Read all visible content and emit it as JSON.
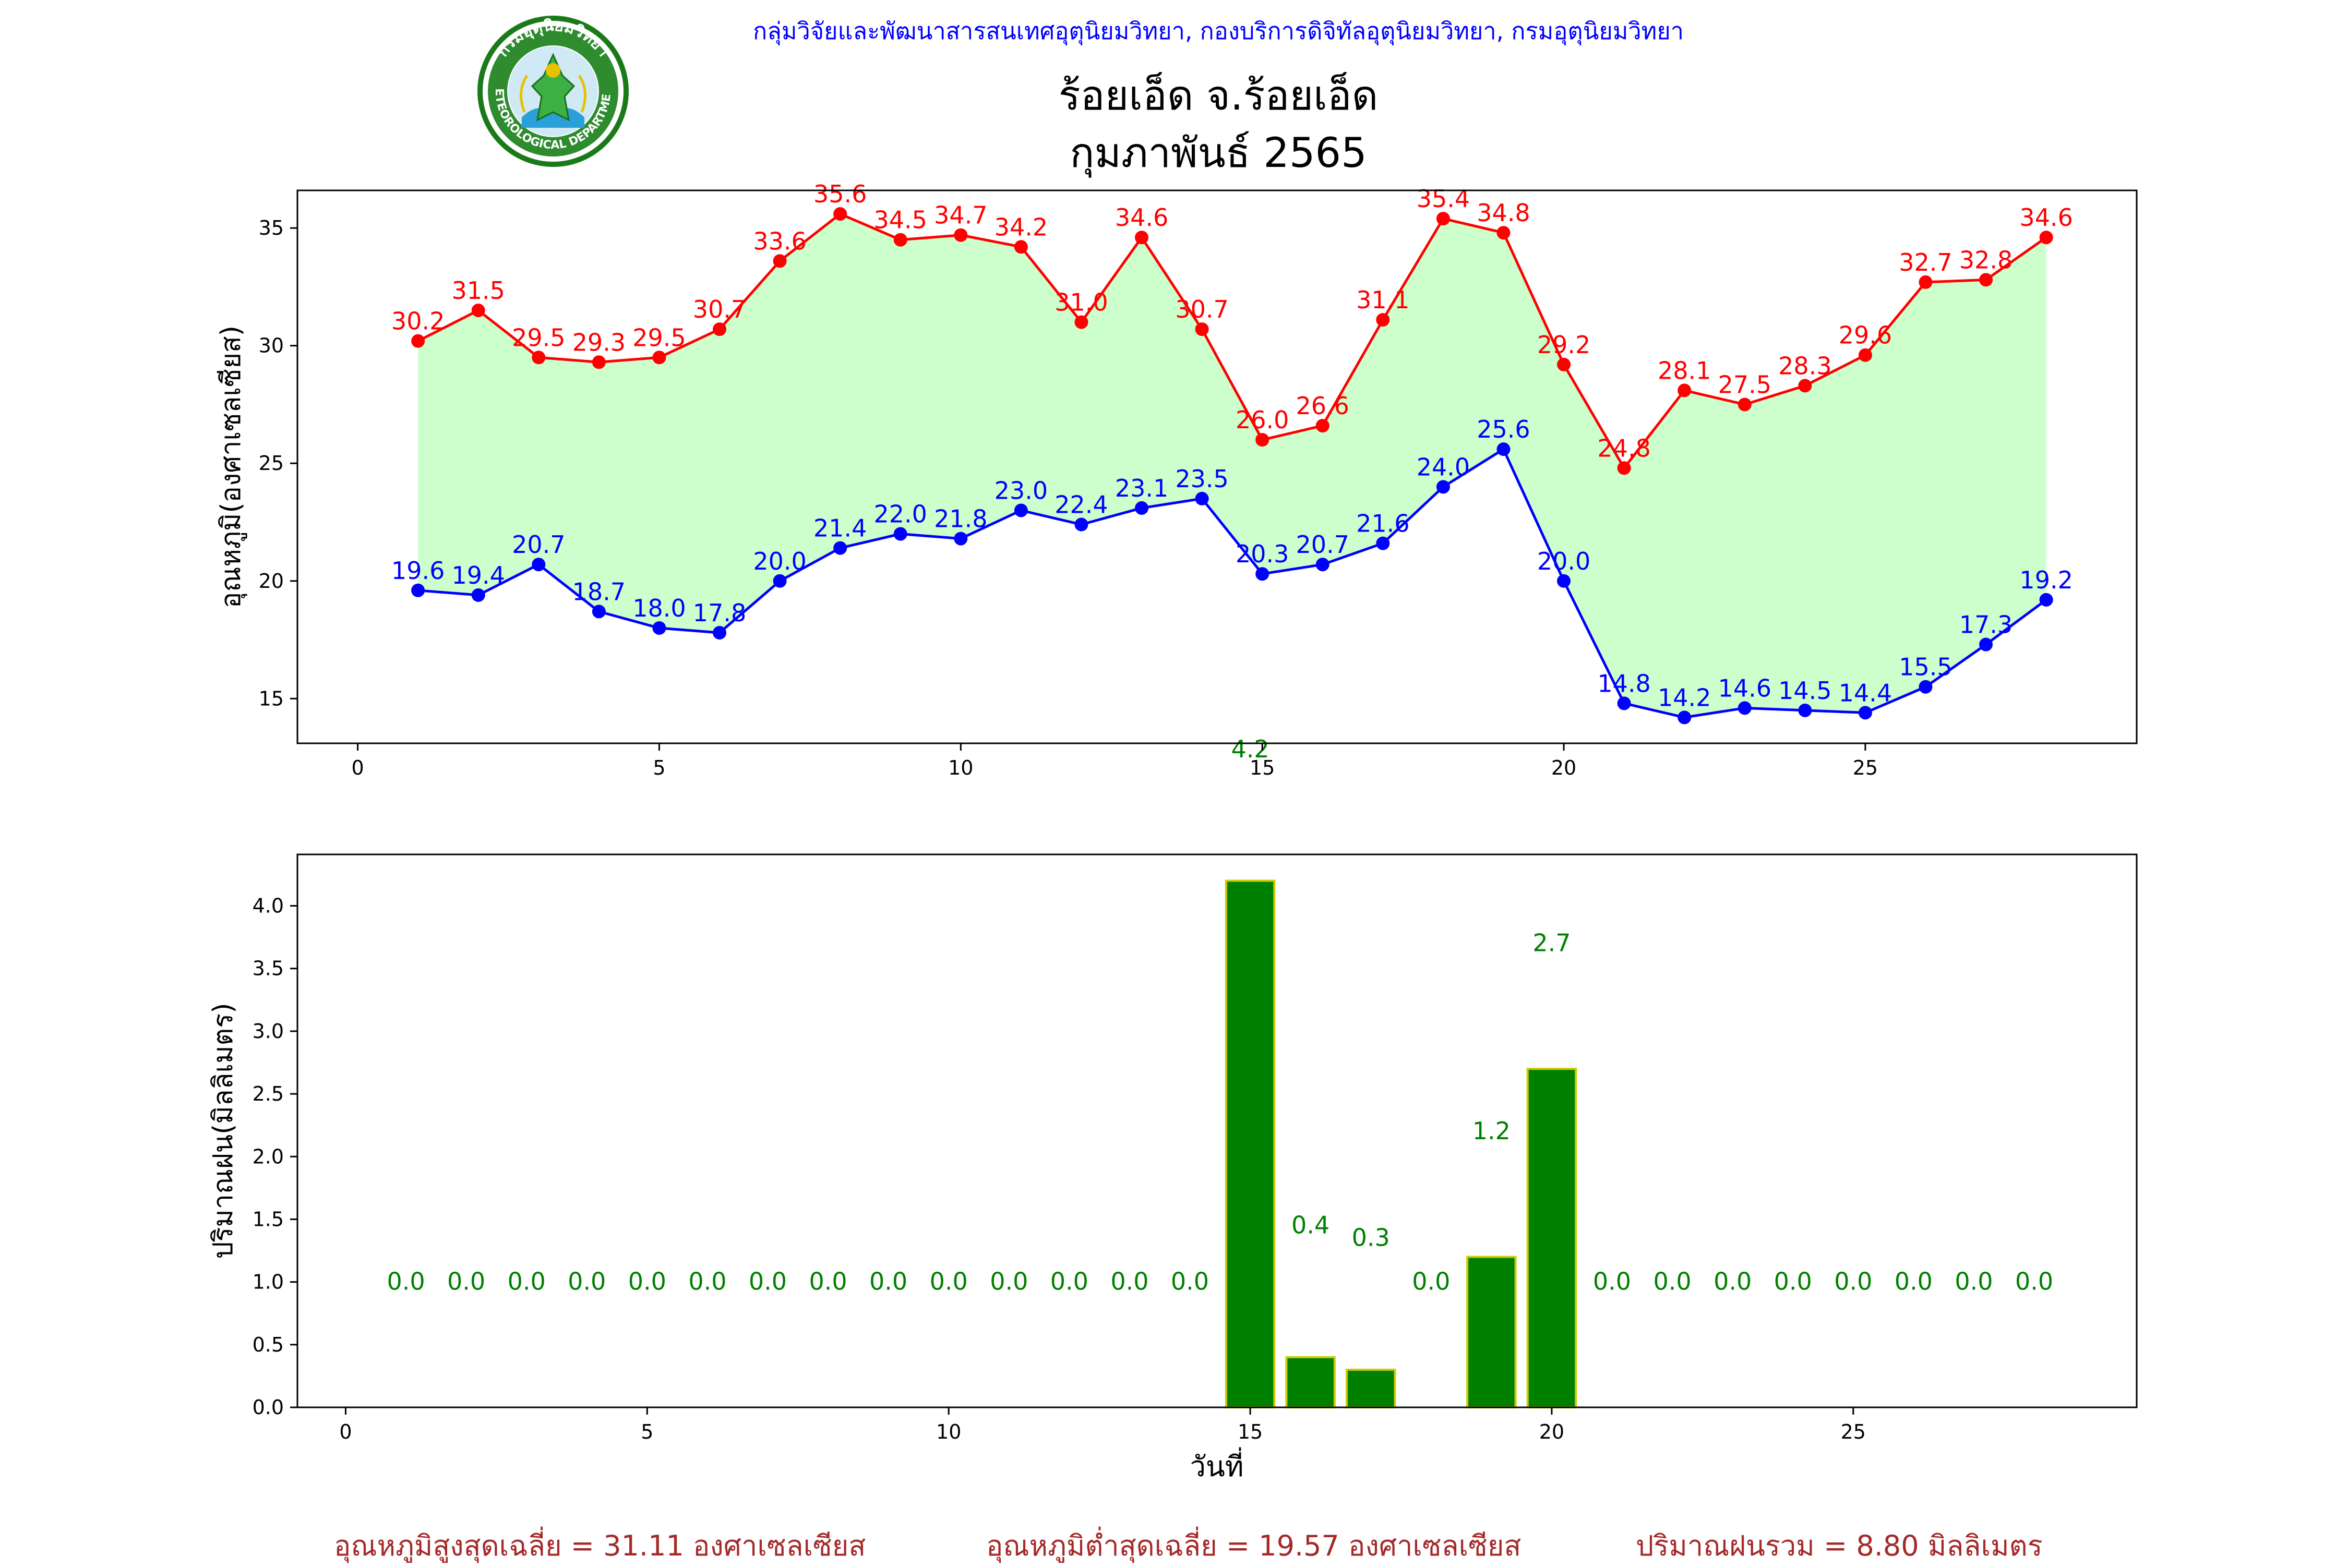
{
  "header": {
    "agency": "กลุ่มวิจัยและพัฒนาสารสนเทศอุตุนิยมวิทยา, กองบริการดิจิทัลอุตุนิยมวิทยา, กรมอุตุนิยมวิทยา",
    "station": "ร้อยเอ็ด จ.ร้อยเอ็ด",
    "month": "กุมภาพันธ์ 2565",
    "logo_text": "METEOROLOGICAL DEPARTMENT",
    "logo_text_top": "กรมอุตุนิยมวิทยา"
  },
  "colors": {
    "max": "#ff0000",
    "min": "#0000ff",
    "fill": "#ccffcc",
    "rain": "#008000",
    "rain_edge": "#cccc00",
    "footer": "#a52a2a",
    "agency": "#0000ff"
  },
  "chart_data": [
    {
      "type": "line",
      "ylabel": "อุณหภูมิ(องศาเซลเซียส)",
      "xlim": [
        -1,
        29.5
      ],
      "ylim": [
        13.1,
        36.6
      ],
      "xticks": [
        0,
        5,
        10,
        15,
        20,
        25
      ],
      "yticks": [
        15,
        20,
        25,
        30,
        35
      ],
      "x": [
        1,
        2,
        3,
        4,
        5,
        6,
        7,
        8,
        9,
        10,
        11,
        12,
        13,
        14,
        15,
        16,
        17,
        18,
        19,
        20,
        21,
        22,
        23,
        24,
        25,
        26,
        27,
        28
      ],
      "series": [
        {
          "key": "max",
          "values": [
            30.2,
            31.5,
            29.5,
            29.3,
            29.5,
            30.7,
            33.6,
            35.6,
            34.5,
            34.7,
            34.2,
            31.0,
            34.6,
            30.7,
            26.0,
            26.6,
            31.1,
            35.4,
            34.8,
            29.2,
            24.8,
            28.1,
            27.5,
            28.3,
            29.6,
            32.7,
            32.8,
            34.6
          ]
        },
        {
          "key": "min",
          "values": [
            19.6,
            19.4,
            20.7,
            18.7,
            18.0,
            17.8,
            20.0,
            21.4,
            22.0,
            21.8,
            23.0,
            22.4,
            23.1,
            23.5,
            20.3,
            20.7,
            21.6,
            24.0,
            25.6,
            20.0,
            14.8,
            14.2,
            14.6,
            14.5,
            14.4,
            15.5,
            17.3,
            19.2
          ]
        }
      ],
      "annotation": {
        "x": 14.8,
        "y": 12.9,
        "text": "4.2"
      }
    },
    {
      "type": "bar",
      "ylabel": "ปริมาณฝน(มิลลิเมตร)",
      "xlabel": "วันที่",
      "xlim": [
        -0.8,
        29.7
      ],
      "ylim": [
        0,
        4.41
      ],
      "xticks": [
        0,
        5,
        10,
        15,
        20,
        25
      ],
      "yticks": [
        0.0,
        0.5,
        1.0,
        1.5,
        2.0,
        2.5,
        3.0,
        3.5,
        4.0
      ],
      "categories": [
        1,
        2,
        3,
        4,
        5,
        6,
        7,
        8,
        9,
        10,
        11,
        12,
        13,
        14,
        15,
        16,
        17,
        18,
        19,
        20,
        21,
        22,
        23,
        24,
        25,
        26,
        27,
        28
      ],
      "values": [
        0.0,
        0.0,
        0.0,
        0.0,
        0.0,
        0.0,
        0.0,
        0.0,
        0.0,
        0.0,
        0.0,
        0.0,
        0.0,
        0.0,
        4.2,
        0.4,
        0.3,
        0.0,
        1.2,
        2.7,
        0.0,
        0.0,
        0.0,
        0.0,
        0.0,
        0.0,
        0.0,
        0.0
      ],
      "value_labels": [
        "0.0",
        "0.0",
        "0.0",
        "0.0",
        "0.0",
        "0.0",
        "0.0",
        "0.0",
        "0.0",
        "0.0",
        "0.0",
        "0.0",
        "0.0",
        "0.0",
        "",
        "0.4",
        "0.3",
        "0.0",
        "1.2",
        "2.7",
        "0.0",
        "0.0",
        "0.0",
        "0.0",
        "0.0",
        "0.0",
        "0.0",
        "0.0"
      ]
    }
  ],
  "footer": {
    "avg_max": "อุณหภูมิสูงสุดเฉลี่ย = 31.11 องศาเซลเซียส",
    "avg_min": "อุณหภูมิต่ำสุดเฉลี่ย = 19.57 องศาเซลเซียส",
    "total_rain": "ปริมาณฝนรวม = 8.80 มิลลิเมตร"
  }
}
